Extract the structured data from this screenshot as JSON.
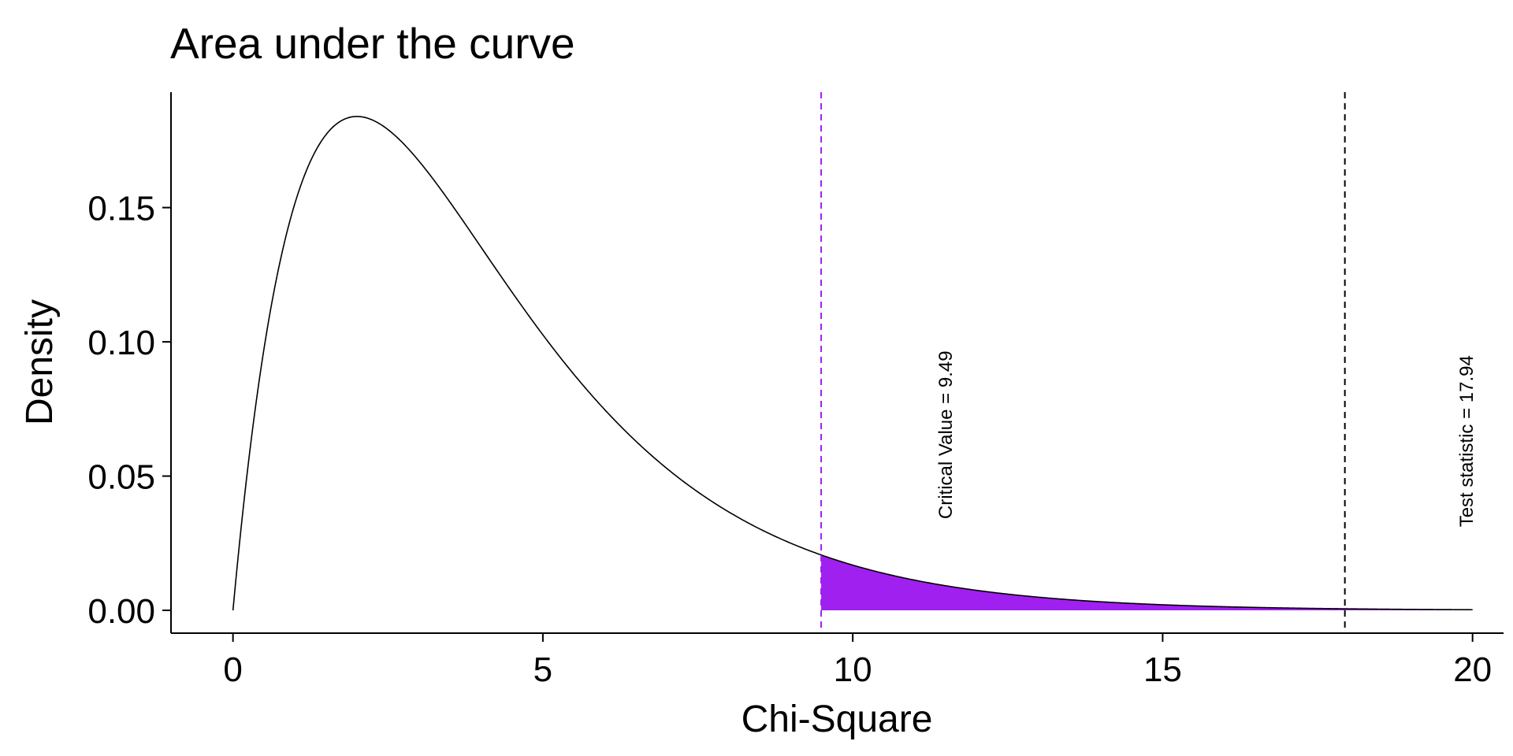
{
  "chart_data": {
    "type": "area",
    "title": "Area under the curve",
    "xlabel": "Chi-Square",
    "ylabel": "Density",
    "distribution": "chi-square",
    "degrees_of_freedom": 4,
    "xlim": [
      -1,
      20.5
    ],
    "ylim": [
      -0.0085,
      0.193
    ],
    "x_ticks": [
      0,
      5,
      10,
      15,
      20
    ],
    "x_tick_labels": [
      "0",
      "5",
      "10",
      "15",
      "20"
    ],
    "y_ticks": [
      0,
      0.05,
      0.1,
      0.15
    ],
    "y_tick_labels": [
      "0.00",
      "0.05",
      "0.10",
      "0.15"
    ],
    "curve_range": [
      0,
      20
    ],
    "curve_color": "#000000",
    "shaded_region": {
      "from": 9.49,
      "to": 20,
      "color": "#a020f0"
    },
    "reference_lines": [
      {
        "x": 9.49,
        "color": "#a020f0",
        "style": "dashed",
        "label": "Critical Value = 9.49",
        "label_x": 11.5,
        "label_y": 0.034
      },
      {
        "x": 17.94,
        "color": "#000000",
        "style": "dashed",
        "label": "Test statistic = 17.94",
        "label_x": 19.9,
        "label_y": 0.031
      }
    ],
    "grid": false,
    "legend": "none"
  }
}
